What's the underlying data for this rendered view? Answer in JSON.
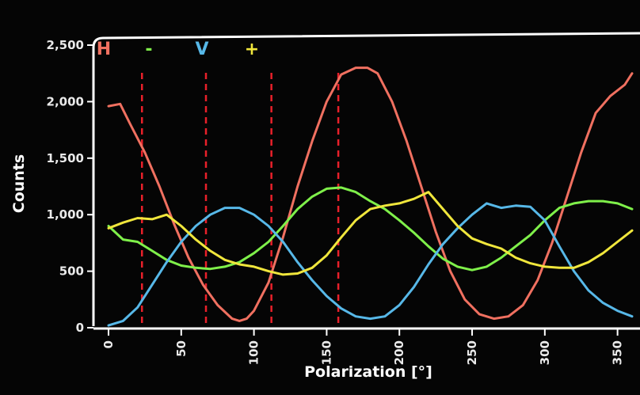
{
  "chart_data": {
    "type": "line",
    "title": "",
    "xlabel": "Polarization [°]",
    "ylabel": "Counts",
    "xlim": [
      0,
      360
    ],
    "ylim": [
      0,
      2500
    ],
    "xticks": [
      0,
      50,
      100,
      150,
      200,
      250,
      300,
      350
    ],
    "xtick_labels": [
      "0",
      "50",
      "100",
      "150",
      "200",
      "250",
      "300",
      "350"
    ],
    "yticks": [
      0,
      500,
      1000,
      1500,
      2000,
      2500
    ],
    "ytick_labels": [
      "0",
      "500",
      "1,000",
      "1,500",
      "2,000",
      "2,500"
    ],
    "grid": false,
    "legend_position": "top-left",
    "dashed_lines": {
      "color": "#e8202a",
      "x": [
        23,
        67,
        112,
        158
      ]
    },
    "series": [
      {
        "name": "H",
        "color": "#f07060",
        "x": [
          0,
          8,
          15,
          25,
          35,
          45,
          55,
          65,
          75,
          85,
          90,
          95,
          100,
          110,
          120,
          130,
          140,
          150,
          160,
          170,
          178,
          185,
          195,
          205,
          215,
          225,
          235,
          245,
          255,
          265,
          275,
          285,
          295,
          305,
          315,
          325,
          335,
          345,
          355,
          360
        ],
        "y": [
          1960,
          1980,
          1800,
          1550,
          1250,
          920,
          620,
          380,
          200,
          80,
          60,
          80,
          150,
          400,
          800,
          1250,
          1650,
          2000,
          2240,
          2300,
          2300,
          2250,
          2000,
          1650,
          1250,
          850,
          500,
          250,
          120,
          80,
          100,
          200,
          420,
          750,
          1150,
          1550,
          1900,
          2050,
          2150,
          2250
        ]
      },
      {
        "name": "-",
        "color": "#7ff04a",
        "x": [
          0,
          10,
          20,
          30,
          40,
          50,
          60,
          70,
          80,
          90,
          100,
          110,
          120,
          130,
          140,
          150,
          160,
          170,
          180,
          190,
          200,
          210,
          220,
          230,
          240,
          250,
          260,
          270,
          280,
          290,
          300,
          310,
          320,
          330,
          340,
          350,
          360
        ],
        "y": [
          900,
          780,
          760,
          680,
          600,
          550,
          530,
          520,
          540,
          580,
          660,
          760,
          900,
          1050,
          1160,
          1230,
          1240,
          1200,
          1120,
          1050,
          950,
          840,
          720,
          610,
          540,
          510,
          540,
          620,
          720,
          820,
          950,
          1060,
          1100,
          1120,
          1120,
          1100,
          1050
        ]
      },
      {
        "name": "V",
        "color": "#57b8e8",
        "x": [
          0,
          10,
          20,
          30,
          40,
          50,
          60,
          70,
          80,
          90,
          100,
          110,
          120,
          130,
          140,
          150,
          160,
          170,
          180,
          190,
          200,
          210,
          220,
          230,
          240,
          250,
          260,
          265,
          270,
          280,
          290,
          300,
          310,
          320,
          330,
          340,
          350,
          360
        ],
        "y": [
          20,
          60,
          180,
          380,
          580,
          760,
          900,
          1000,
          1060,
          1060,
          1000,
          900,
          760,
          580,
          420,
          280,
          170,
          100,
          80,
          100,
          200,
          360,
          560,
          740,
          880,
          1000,
          1100,
          1080,
          1060,
          1080,
          1070,
          950,
          720,
          500,
          330,
          220,
          150,
          100
        ]
      },
      {
        "name": "+",
        "color": "#f0e63c",
        "x": [
          0,
          10,
          20,
          30,
          40,
          50,
          60,
          70,
          80,
          90,
          100,
          110,
          120,
          130,
          140,
          150,
          160,
          170,
          180,
          190,
          200,
          210,
          220,
          230,
          240,
          250,
          260,
          270,
          280,
          290,
          300,
          310,
          320,
          330,
          340,
          350,
          360
        ],
        "y": [
          880,
          930,
          970,
          960,
          1000,
          900,
          780,
          680,
          600,
          560,
          540,
          500,
          470,
          480,
          530,
          640,
          800,
          950,
          1050,
          1080,
          1100,
          1140,
          1200,
          1050,
          900,
          790,
          740,
          700,
          620,
          570,
          540,
          530,
          530,
          580,
          660,
          760,
          860
        ]
      }
    ]
  }
}
